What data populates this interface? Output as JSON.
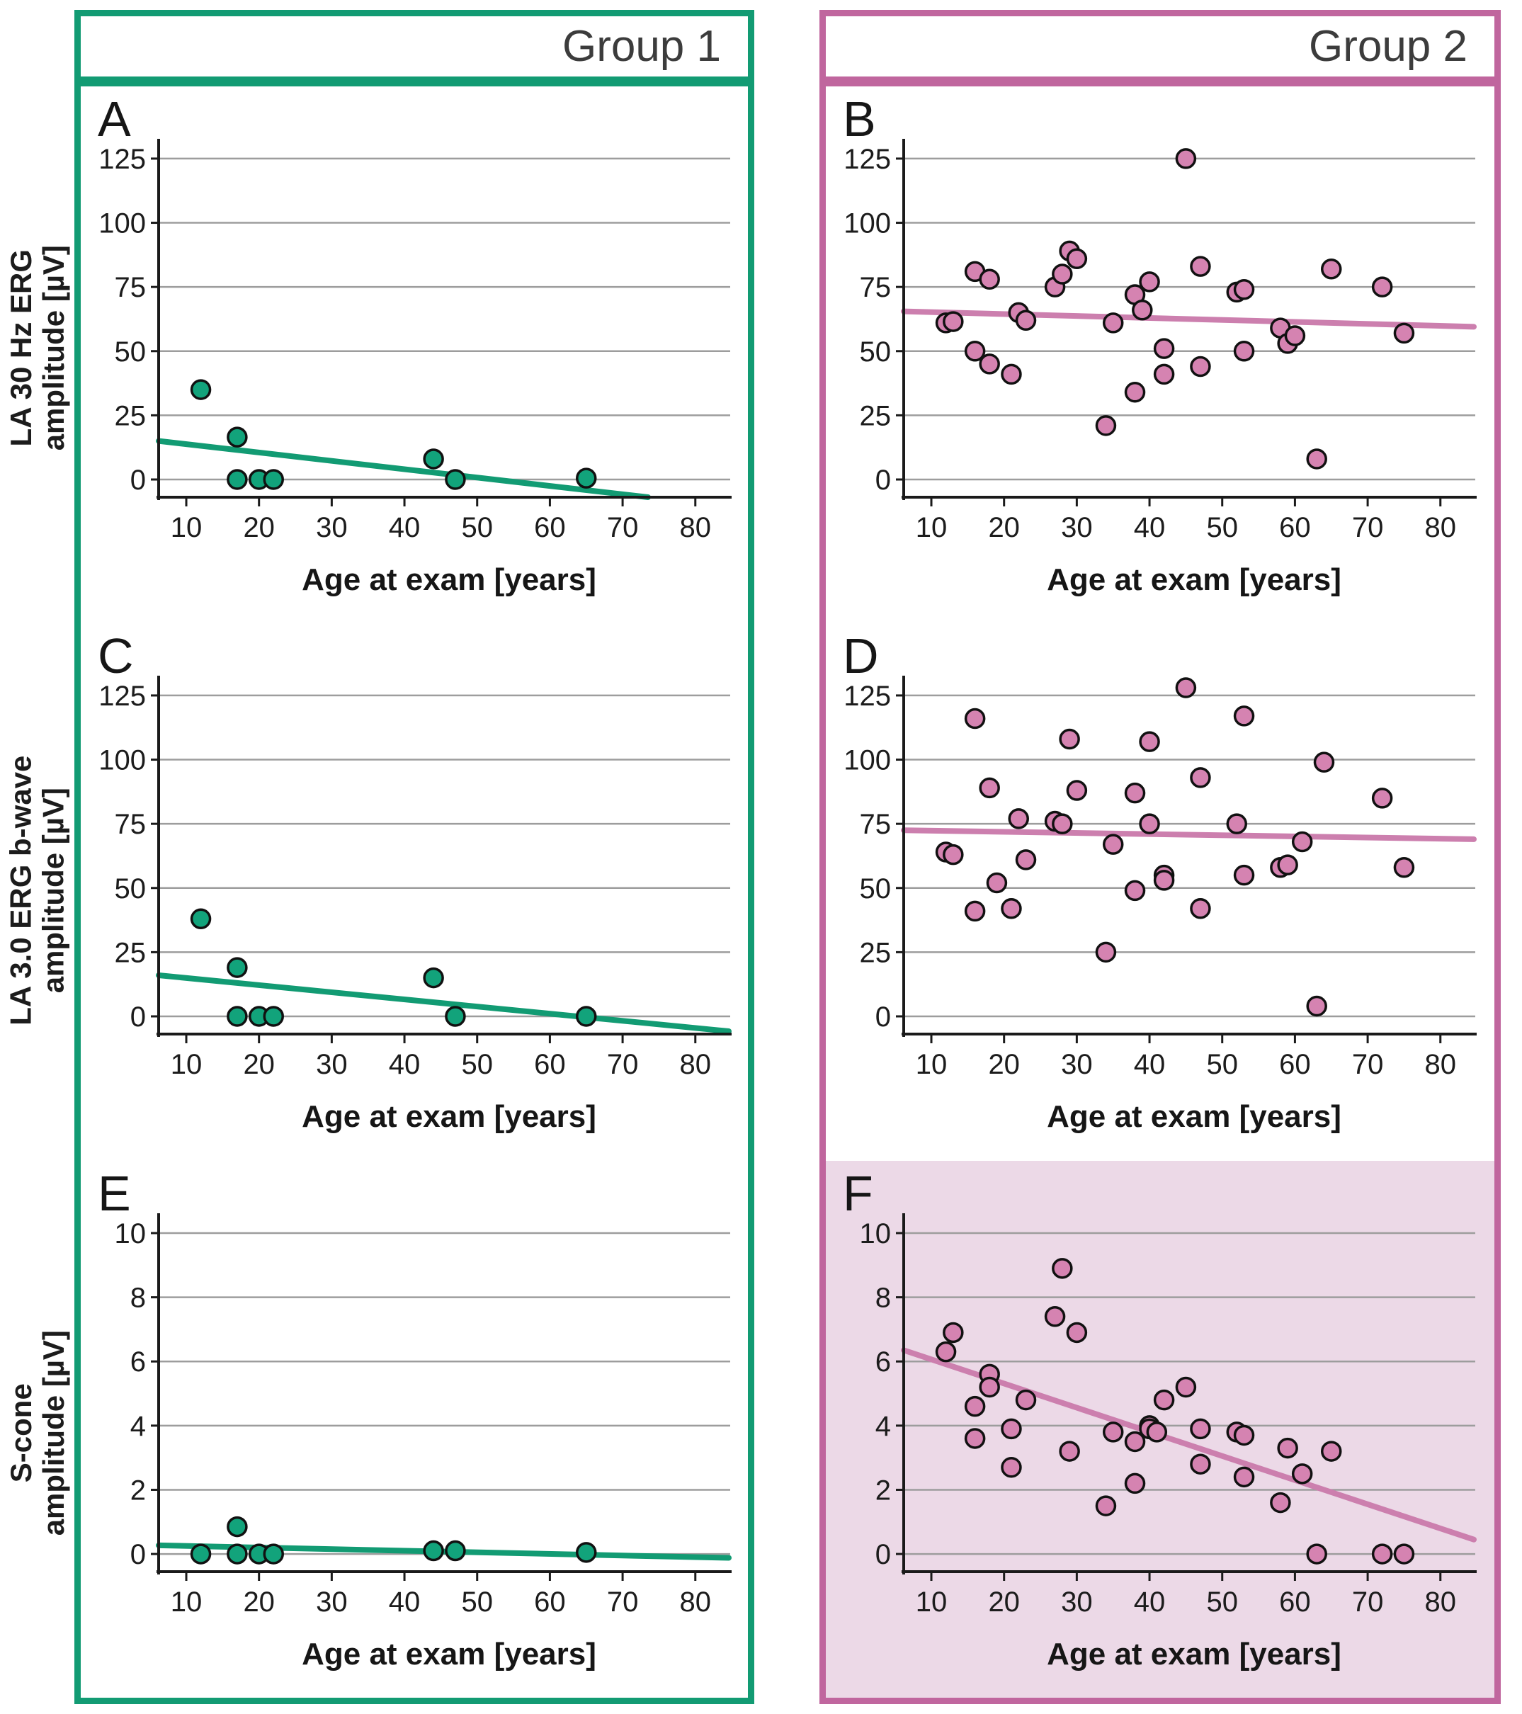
{
  "layout": {
    "columns": [
      {
        "label": "Group 1",
        "accent": "#129b73",
        "point_fill": "#12a37b",
        "trend_color": "#129b73",
        "panels": [
          "A",
          "C",
          "E"
        ]
      },
      {
        "label": "Group 2",
        "accent": "#c0669e",
        "point_fill": "#d583b1",
        "trend_color": "#cc7fae",
        "panels": [
          "B",
          "D",
          "F"
        ]
      }
    ],
    "row_ylabels": [
      [
        "LA 30 Hz ERG",
        "amplitude [µV]"
      ],
      [
        "LA 3.0 ERG b-wave",
        "amplitude [µV]"
      ],
      [
        "S-cone",
        "amplitude [µV]"
      ]
    ],
    "grid_color": "#9d9d9d",
    "axis_color": "#1a1a1a"
  },
  "chart_data": [
    {
      "type": "scatter",
      "panel": "A",
      "group": "Group 1",
      "xlabel": "Age at exam [years]",
      "ylabel": "LA 30 Hz ERG amplitude [µV]",
      "xlim": [
        6.2,
        84.6
      ],
      "ylim": [
        -6.9,
        131.6
      ],
      "xticks": [
        10,
        20,
        30,
        40,
        50,
        60,
        70,
        80
      ],
      "yticks": [
        0,
        25,
        50,
        75,
        100,
        125
      ],
      "grid": true,
      "bg": "#ffffff",
      "trend_line": {
        "x": [
          6.2,
          73.5
        ],
        "y": [
          15,
          -6.9
        ]
      },
      "points": [
        [
          12,
          35
        ],
        [
          17,
          16.5
        ],
        [
          17,
          0
        ],
        [
          20,
          0
        ],
        [
          22,
          0
        ],
        [
          44,
          8
        ],
        [
          47,
          0
        ],
        [
          65,
          0.5
        ]
      ]
    },
    {
      "type": "scatter",
      "panel": "C",
      "group": "Group 1",
      "xlabel": "Age at exam [years]",
      "ylabel": "LA 3.0 ERG b-wave amplitude [µV]",
      "xlim": [
        6.2,
        84.6
      ],
      "ylim": [
        -6.9,
        131.6
      ],
      "xticks": [
        10,
        20,
        30,
        40,
        50,
        60,
        70,
        80
      ],
      "yticks": [
        0,
        25,
        50,
        75,
        100,
        125
      ],
      "grid": true,
      "bg": "#ffffff",
      "trend_line": {
        "x": [
          6.2,
          84.6
        ],
        "y": [
          16,
          -5.8
        ]
      },
      "points": [
        [
          12,
          38
        ],
        [
          17,
          19
        ],
        [
          17,
          0
        ],
        [
          20,
          0
        ],
        [
          22,
          0
        ],
        [
          44,
          15
        ],
        [
          47,
          0
        ],
        [
          65,
          0
        ]
      ]
    },
    {
      "type": "scatter",
      "panel": "E",
      "group": "Group 1",
      "xlabel": "Age at exam [years]",
      "ylabel": "S-cone amplitude [µV]",
      "xlim": [
        6.2,
        84.6
      ],
      "ylim": [
        -0.55,
        10.53
      ],
      "xticks": [
        10,
        20,
        30,
        40,
        50,
        60,
        70,
        80
      ],
      "yticks": [
        0,
        2,
        4,
        6,
        8,
        10
      ],
      "grid": true,
      "bg": "#ffffff",
      "trend_line": {
        "x": [
          6.2,
          84.6
        ],
        "y": [
          0.27,
          -0.12
        ]
      },
      "points": [
        [
          12,
          0
        ],
        [
          17,
          0.85
        ],
        [
          17,
          0
        ],
        [
          20,
          0
        ],
        [
          22,
          0
        ],
        [
          44,
          0.1
        ],
        [
          47,
          0.1
        ],
        [
          65,
          0.05
        ]
      ]
    },
    {
      "type": "scatter",
      "panel": "B",
      "group": "Group 2",
      "xlabel": "Age at exam [years]",
      "ylabel": "LA 30 Hz ERG amplitude [µV]",
      "xlim": [
        6.2,
        84.6
      ],
      "ylim": [
        -6.9,
        131.6
      ],
      "xticks": [
        10,
        20,
        30,
        40,
        50,
        60,
        70,
        80
      ],
      "yticks": [
        0,
        25,
        50,
        75,
        100,
        125
      ],
      "grid": true,
      "bg": "#ffffff",
      "trend_line": {
        "x": [
          6.2,
          84.6
        ],
        "y": [
          65.5,
          59.5
        ]
      },
      "points": [
        [
          12,
          61
        ],
        [
          13,
          61.5
        ],
        [
          16,
          81
        ],
        [
          18,
          78
        ],
        [
          16,
          50
        ],
        [
          18,
          45
        ],
        [
          21,
          41
        ],
        [
          22,
          65
        ],
        [
          23,
          62
        ],
        [
          27,
          75
        ],
        [
          28,
          80
        ],
        [
          29,
          89
        ],
        [
          30,
          86
        ],
        [
          34,
          21
        ],
        [
          35,
          61
        ],
        [
          38,
          72
        ],
        [
          39,
          66
        ],
        [
          40,
          77
        ],
        [
          38,
          34
        ],
        [
          42,
          51
        ],
        [
          42,
          41
        ],
        [
          45,
          125
        ],
        [
          47,
          83
        ],
        [
          47,
          44
        ],
        [
          52,
          73
        ],
        [
          53,
          74
        ],
        [
          53,
          50
        ],
        [
          58,
          59
        ],
        [
          59,
          53
        ],
        [
          60,
          56
        ],
        [
          63,
          8
        ],
        [
          65,
          82
        ],
        [
          72,
          75
        ],
        [
          75,
          57
        ]
      ]
    },
    {
      "type": "scatter",
      "panel": "D",
      "group": "Group 2",
      "xlabel": "Age at exam [years]",
      "ylabel": "LA 3.0 ERG b-wave amplitude [µV]",
      "xlim": [
        6.2,
        84.6
      ],
      "ylim": [
        -6.9,
        131.6
      ],
      "xticks": [
        10,
        20,
        30,
        40,
        50,
        60,
        70,
        80
      ],
      "yticks": [
        0,
        25,
        50,
        75,
        100,
        125
      ],
      "grid": true,
      "bg": "#ffffff",
      "trend_line": {
        "x": [
          6.2,
          84.6
        ],
        "y": [
          72.5,
          69
        ]
      },
      "points": [
        [
          12,
          64
        ],
        [
          13,
          63
        ],
        [
          16,
          116
        ],
        [
          18,
          89
        ],
        [
          16,
          41
        ],
        [
          19,
          52
        ],
        [
          21,
          42
        ],
        [
          22,
          77
        ],
        [
          23,
          61
        ],
        [
          27,
          76
        ],
        [
          28,
          75
        ],
        [
          29,
          108
        ],
        [
          30,
          88
        ],
        [
          34,
          25
        ],
        [
          35,
          67
        ],
        [
          38,
          87
        ],
        [
          38,
          49
        ],
        [
          40,
          107
        ],
        [
          40,
          75
        ],
        [
          42,
          55
        ],
        [
          42,
          53
        ],
        [
          45,
          128
        ],
        [
          47,
          93
        ],
        [
          47,
          42
        ],
        [
          52,
          75
        ],
        [
          53,
          117
        ],
        [
          53,
          55
        ],
        [
          58,
          58
        ],
        [
          59,
          59
        ],
        [
          61,
          68
        ],
        [
          63,
          4
        ],
        [
          64,
          99
        ],
        [
          72,
          85
        ],
        [
          75,
          58
        ]
      ]
    },
    {
      "type": "scatter",
      "panel": "F",
      "group": "Group 2",
      "xlabel": "Age at exam [years]",
      "ylabel": "S-cone amplitude [µV]",
      "xlim": [
        6.2,
        84.6
      ],
      "ylim": [
        -0.55,
        10.53
      ],
      "xticks": [
        10,
        20,
        30,
        40,
        50,
        60,
        70,
        80
      ],
      "yticks": [
        0,
        2,
        4,
        6,
        8,
        10
      ],
      "grid": true,
      "bg": "#ecd9e7",
      "trend_line": {
        "x": [
          6.2,
          84.6
        ],
        "y": [
          6.35,
          0.45
        ]
      },
      "points": [
        [
          12,
          6.3
        ],
        [
          13,
          6.9
        ],
        [
          16,
          4.6
        ],
        [
          16,
          3.6
        ],
        [
          18,
          5.6
        ],
        [
          18,
          5.2
        ],
        [
          21,
          3.9
        ],
        [
          21,
          2.7
        ],
        [
          23,
          4.8
        ],
        [
          27,
          7.4
        ],
        [
          28,
          8.9
        ],
        [
          29,
          3.2
        ],
        [
          30,
          6.9
        ],
        [
          34,
          1.5
        ],
        [
          35,
          3.8
        ],
        [
          38,
          3.5
        ],
        [
          38,
          2.2
        ],
        [
          40,
          4
        ],
        [
          40,
          3.9
        ],
        [
          41,
          3.8
        ],
        [
          42,
          4.8
        ],
        [
          45,
          5.2
        ],
        [
          47,
          3.9
        ],
        [
          47,
          2.8
        ],
        [
          52,
          3.8
        ],
        [
          53,
          3.7
        ],
        [
          53,
          2.4
        ],
        [
          58,
          1.6
        ],
        [
          59,
          3.3
        ],
        [
          61,
          2.5
        ],
        [
          63,
          0
        ],
        [
          65,
          3.2
        ],
        [
          72,
          0
        ],
        [
          75,
          0
        ]
      ]
    }
  ]
}
